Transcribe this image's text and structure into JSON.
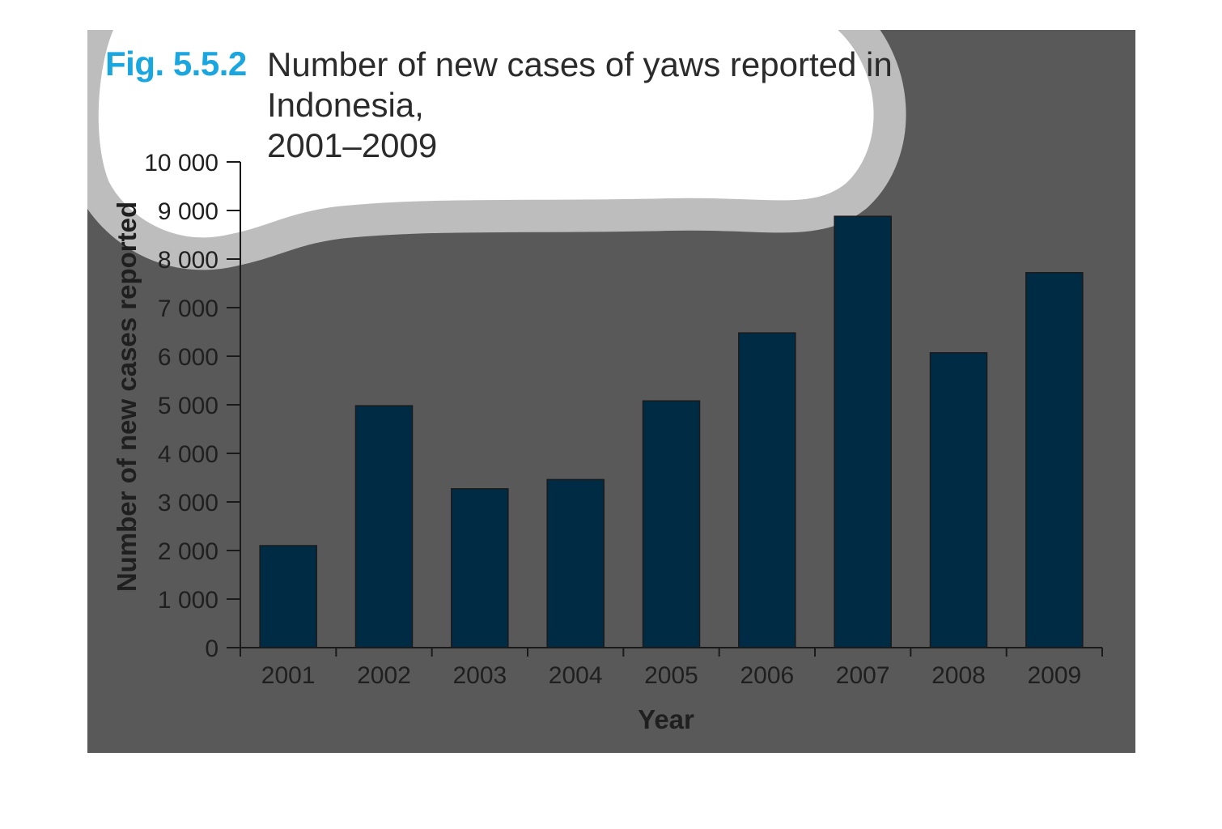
{
  "figure": {
    "number": "Fig. 5.5.2",
    "title_line1": "Number of new cases of yaws reported in Indonesia,",
    "title_line2": "2001–2009"
  },
  "colors": {
    "background": "#595959",
    "bar": "#002b45",
    "figure_number": "#1aa6df",
    "highlight_shape": "#bdbdbd"
  },
  "chart_data": {
    "type": "bar",
    "title": "Number of new cases of yaws reported in Indonesia, 2001–2009",
    "xlabel": "Year",
    "ylabel": "Number of new cases reported",
    "categories": [
      "2001",
      "2002",
      "2003",
      "2004",
      "2005",
      "2006",
      "2007",
      "2008",
      "2009"
    ],
    "values": [
      2100,
      4980,
      3270,
      3460,
      5080,
      6480,
      8880,
      6070,
      7720
    ],
    "ylim": [
      0,
      10000
    ],
    "yticks": [
      0,
      1000,
      2000,
      3000,
      4000,
      5000,
      6000,
      7000,
      8000,
      9000,
      10000
    ],
    "ytick_labels": [
      "0",
      "1 000",
      "2 000",
      "3 000",
      "4 000",
      "5 000",
      "6 000",
      "7 000",
      "8 000",
      "9 000",
      "10 000"
    ],
    "grid": false,
    "legend": "none"
  }
}
